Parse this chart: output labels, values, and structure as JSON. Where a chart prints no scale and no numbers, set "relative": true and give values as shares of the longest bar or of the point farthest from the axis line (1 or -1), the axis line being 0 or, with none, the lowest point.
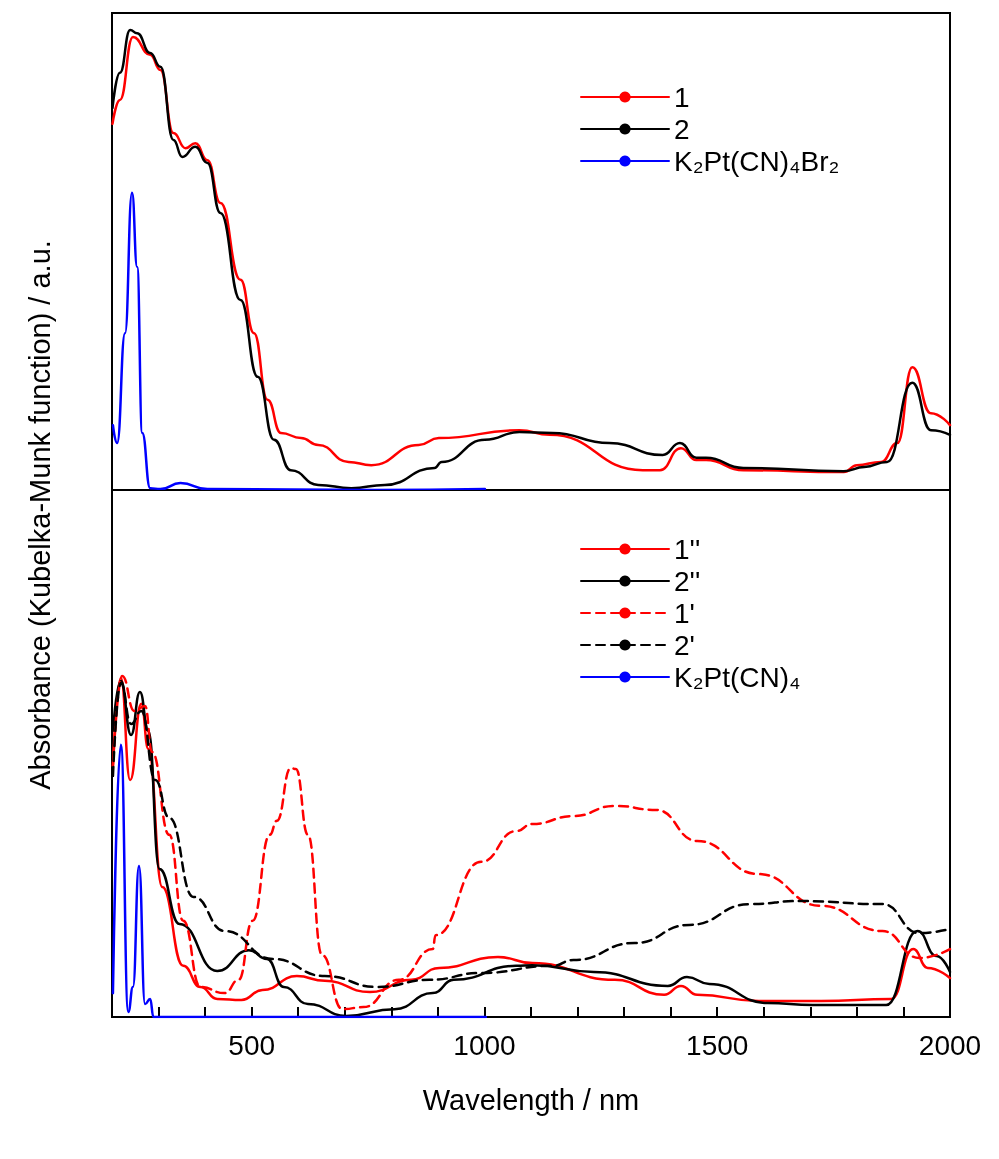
{
  "chart_data": [
    {
      "type": "line",
      "relative": true,
      "marker": "none",
      "legend": "top right",
      "tick_labels": false,
      "ylabel": "Absorbance (Kubelka-Munk function) / a.u.",
      "xlim": [
        200,
        2000
      ],
      "xticks": [
        {
          "value": 300,
          "label": null
        },
        {
          "value": 400,
          "label": null
        },
        500,
        {
          "value": 600,
          "label": null
        },
        {
          "value": 700,
          "label": null
        },
        {
          "value": 800,
          "label": null
        },
        {
          "value": 900,
          "label": null
        },
        1000,
        {
          "value": 1100,
          "label": null
        },
        {
          "value": 1200,
          "label": null
        },
        {
          "value": 1300,
          "label": null
        },
        {
          "value": 1400,
          "label": null
        },
        1500,
        {
          "value": 1600,
          "label": null
        },
        {
          "value": 1700,
          "label": null
        },
        {
          "value": 1800,
          "label": null
        },
        {
          "value": 1900,
          "label": null
        },
        2000
      ],
      "series": [
        {
          "name": "1",
          "color": "#ff0000",
          "line_style": "solid",
          "x": [
            201,
            217,
            245,
            282,
            304,
            332,
            358,
            379,
            405,
            433,
            476,
            505,
            534,
            563,
            606,
            643,
            708,
            757,
            859,
            902,
            1075,
            1140,
            1340,
            1377,
            1422,
            1455,
            1476,
            1556,
            1772,
            1800,
            1852,
            1887,
            1919,
            1959,
            2000
          ],
          "values": [
            0.796,
            0.848,
            0.985,
            0.946,
            0.913,
            0.776,
            0.743,
            0.754,
            0.717,
            0.624,
            0.457,
            0.341,
            0.196,
            0.124,
            0.113,
            0.098,
            0.061,
            0.054,
            0.098,
            0.113,
            0.13,
            0.12,
            0.043,
            0.043,
            0.091,
            0.065,
            0.065,
            0.043,
            0.039,
            0.054,
            0.061,
            0.102,
            0.267,
            0.167,
            0.141
          ]
        },
        {
          "name": "2",
          "color": "#000000",
          "line_style": "solid",
          "x": [
            201,
            217,
            239,
            254,
            282,
            304,
            332,
            351,
            379,
            405,
            433,
            476,
            513,
            548,
            584,
            643,
            714,
            786,
            893,
            908,
            1001,
            1075,
            1146,
            1268,
            1383,
            1420,
            1455,
            1476,
            1556,
            1772,
            1816,
            1865,
            1919,
            1959,
            2000
          ],
          "values": [
            0.83,
            0.907,
            1.0,
            0.993,
            0.95,
            0.92,
            0.761,
            0.724,
            0.746,
            0.711,
            0.602,
            0.413,
            0.246,
            0.109,
            0.043,
            0.011,
            0.004,
            0.011,
            0.048,
            0.061,
            0.109,
            0.126,
            0.124,
            0.102,
            0.076,
            0.102,
            0.07,
            0.07,
            0.048,
            0.041,
            0.05,
            0.061,
            0.233,
            0.13,
            0.12
          ]
        },
        {
          "name": "K₂Pt(CN)₄Br₂",
          "color": "#0000ff",
          "line_style": "solid",
          "x": [
            202,
            211,
            228,
            243,
            254,
            265,
            282,
            304,
            347,
            405,
            764,
            1001
          ],
          "values": [
            0.141,
            0.102,
            0.341,
            0.646,
            0.485,
            0.124,
            0.004,
            0.002,
            0.015,
            0.002,
            0,
            0.002
          ]
        }
      ]
    },
    {
      "type": "line",
      "relative": true,
      "marker": "none",
      "legend": "top right",
      "tick_labels": "x",
      "xlabel": "Wavelength / nm",
      "xlim": [
        200,
        2000
      ],
      "xticks": [
        {
          "value": 300,
          "label": null
        },
        {
          "value": 400,
          "label": null
        },
        500,
        {
          "value": 600,
          "label": null
        },
        {
          "value": 700,
          "label": null
        },
        {
          "value": 800,
          "label": null
        },
        {
          "value": 900,
          "label": null
        },
        1000,
        {
          "value": 1100,
          "label": null
        },
        {
          "value": 1200,
          "label": null
        },
        {
          "value": 1300,
          "label": null
        },
        {
          "value": 1400,
          "label": null
        },
        1500,
        {
          "value": 1600,
          "label": null
        },
        {
          "value": 1700,
          "label": null
        },
        {
          "value": 1800,
          "label": null
        },
        {
          "value": 1900,
          "label": null
        },
        2000
      ],
      "series": [
        {
          "name": "1''",
          "color": "#ff0000",
          "line_style": "solid",
          "x": [
            202,
            219,
            239,
            263,
            278,
            308,
            353,
            390,
            426,
            478,
            523,
            597,
            657,
            754,
            843,
            903,
            1029,
            1103,
            1280,
            1386,
            1422,
            1457,
            1589,
            1723,
            1874,
            1921,
            1952,
            2000
          ],
          "values": [
            0.736,
            0.994,
            0.695,
            0.918,
            0.786,
            0.381,
            0.15,
            0.088,
            0.053,
            0.05,
            0.079,
            0.12,
            0.106,
            0.073,
            0.109,
            0.144,
            0.176,
            0.158,
            0.109,
            0.065,
            0.091,
            0.065,
            0.047,
            0.047,
            0.053,
            0.199,
            0.144,
            0.114
          ]
        },
        {
          "name": "2''",
          "color": "#000000",
          "line_style": "solid",
          "x": [
            202,
            219,
            241,
            260,
            278,
            302,
            345,
            426,
            494,
            533,
            569,
            621,
            703,
            807,
            889,
            934,
            1068,
            1103,
            1235,
            1394,
            1435,
            1483,
            1608,
            1705,
            1863,
            1930,
            1971,
            2000
          ],
          "values": [
            0.839,
            0.985,
            0.827,
            0.953,
            0.839,
            0.434,
            0.273,
            0.135,
            0.196,
            0.17,
            0.088,
            0.038,
            0.003,
            0.023,
            0.07,
            0.109,
            0.15,
            0.152,
            0.132,
            0.091,
            0.117,
            0.097,
            0.041,
            0.035,
            0.035,
            0.252,
            0.179,
            0.132
          ]
        },
        {
          "name": "1'",
          "color": "#ff0000",
          "line_style": "dashed",
          "x": [
            202,
            222,
            248,
            271,
            286,
            323,
            353,
            390,
            442,
            472,
            502,
            539,
            554,
            584,
            595,
            621,
            651,
            695,
            740,
            816,
            889,
            895,
            993,
            1068,
            1103,
            1191,
            1280,
            1369,
            1457,
            1589,
            1723,
            1855,
            1934,
            2000
          ],
          "values": [
            0.736,
            1.0,
            0.897,
            0.912,
            0.777,
            0.534,
            0.282,
            0.088,
            0.07,
            0.109,
            0.282,
            0.534,
            0.575,
            0.73,
            0.727,
            0.534,
            0.182,
            0.023,
            0.029,
            0.109,
            0.199,
            0.24,
            0.455,
            0.545,
            0.566,
            0.589,
            0.619,
            0.607,
            0.516,
            0.419,
            0.326,
            0.252,
            0.173,
            0.199
          ]
        },
        {
          "name": "2'",
          "color": "#000000",
          "line_style": "dashed",
          "x": [
            202,
            219,
            241,
            263,
            293,
            323,
            375,
            442,
            546,
            657,
            770,
            882,
            993,
            1146,
            1191,
            1323,
            1440,
            1571,
            1677,
            1855,
            1934,
            2000
          ],
          "values": [
            0.707,
            0.979,
            0.859,
            0.897,
            0.695,
            0.584,
            0.352,
            0.252,
            0.17,
            0.12,
            0.088,
            0.109,
            0.129,
            0.15,
            0.167,
            0.217,
            0.27,
            0.331,
            0.34,
            0.331,
            0.246,
            0.258
          ]
        },
        {
          "name": "K₂Pt(CN)₄",
          "color": "#0000ff",
          "line_style": "solid",
          "x": [
            202,
            219,
            235,
            245,
            258,
            271,
            282,
            289,
            397,
            1003
          ],
          "values": [
            0.07,
            0.798,
            0.015,
            0.088,
            0.443,
            0.038,
            0.053,
            0,
            0,
            0
          ]
        }
      ]
    }
  ]
}
